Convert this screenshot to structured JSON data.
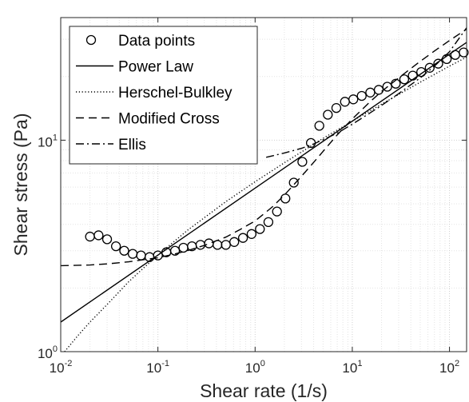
{
  "chart_data": {
    "type": "line",
    "xscale": "log",
    "yscale": "log",
    "xlim": [
      0.01,
      150
    ],
    "ylim": [
      1,
      38
    ],
    "xlabel": "Shear rate (1/s)",
    "ylabel": "Shear stress (Pa)",
    "grid": true,
    "legend_position": "top-left",
    "x_ticks": [
      {
        "value": 0.01,
        "base": "10",
        "exp": "-2"
      },
      {
        "value": 0.1,
        "base": "10",
        "exp": "-1"
      },
      {
        "value": 1,
        "base": "10",
        "exp": "0"
      },
      {
        "value": 10,
        "base": "10",
        "exp": "1"
      },
      {
        "value": 100,
        "base": "10",
        "exp": "2"
      }
    ],
    "y_ticks": [
      {
        "value": 1,
        "base": "10",
        "exp": "0"
      },
      {
        "value": 10,
        "base": "10",
        "exp": "1"
      }
    ],
    "series": [
      {
        "name": "Data points",
        "style": "markers",
        "marker": "open-circle",
        "color": "#000000",
        "x": [
          0.02,
          0.0245,
          0.03,
          0.037,
          0.045,
          0.055,
          0.067,
          0.082,
          0.1,
          0.122,
          0.15,
          0.183,
          0.224,
          0.274,
          0.335,
          0.41,
          0.5,
          0.61,
          0.75,
          0.92,
          1.12,
          1.37,
          1.68,
          2.05,
          2.5,
          3.06,
          3.75,
          4.58,
          5.6,
          6.85,
          8.4,
          10.25,
          12.5,
          15.3,
          18.7,
          22.9,
          28,
          34.2,
          41.9,
          51.2,
          62.6,
          76.6,
          93.7,
          114.6,
          140
        ],
        "y": [
          3.5,
          3.55,
          3.4,
          3.15,
          3.0,
          2.9,
          2.85,
          2.8,
          2.85,
          2.95,
          3.0,
          3.1,
          3.15,
          3.2,
          3.25,
          3.2,
          3.2,
          3.3,
          3.45,
          3.6,
          3.8,
          4.1,
          4.6,
          5.3,
          6.3,
          7.9,
          9.7,
          11.7,
          13.2,
          14.2,
          15.2,
          15.6,
          16.2,
          16.8,
          17.3,
          17.9,
          18.5,
          19.4,
          20.2,
          21.0,
          22.0,
          23.0,
          24.2,
          25.3,
          26.0
        ]
      },
      {
        "name": "Power Law",
        "style": "solid",
        "color": "#000000",
        "x": [
          0.01,
          150
        ],
        "y": [
          1.38,
          29.0
        ]
      },
      {
        "name": "Herschel-Bulkley",
        "style": "dotted",
        "color": "#000000",
        "x": [
          0.01,
          0.015,
          0.02,
          0.03,
          0.05,
          0.07,
          0.1,
          0.2,
          0.5,
          1,
          2,
          5,
          10,
          20,
          50,
          100,
          150
        ],
        "y": [
          0.95,
          1.19,
          1.38,
          1.67,
          2.14,
          2.47,
          2.86,
          3.74,
          5.12,
          6.36,
          7.82,
          10.2,
          12.3,
          14.8,
          18.8,
          22.4,
          24.7
        ]
      },
      {
        "name": "Modified Cross",
        "style": "dashed",
        "color": "#000000",
        "x": [
          0.01,
          0.02,
          0.03,
          0.05,
          0.07,
          0.1,
          0.15,
          0.2,
          0.3,
          0.5,
          0.7,
          1,
          1.5,
          2,
          3,
          4,
          5,
          7,
          10,
          15,
          20,
          30,
          50,
          70,
          100,
          150
        ],
        "y": [
          2.55,
          2.57,
          2.6,
          2.66,
          2.72,
          2.78,
          2.9,
          3.0,
          3.18,
          3.48,
          3.78,
          4.15,
          4.83,
          5.5,
          6.75,
          7.85,
          8.85,
          10.6,
          12.6,
          15.1,
          17.0,
          19.7,
          23.6,
          26.4,
          29.6,
          33.5
        ]
      },
      {
        "name": "Ellis",
        "style": "dashdot",
        "color": "#000000",
        "x": [
          1.3,
          2,
          3,
          4,
          5,
          7,
          10,
          15,
          20,
          30,
          50,
          70,
          100,
          150
        ],
        "y": [
          8.3,
          8.7,
          9.15,
          9.6,
          10.05,
          10.8,
          11.9,
          13.4,
          14.6,
          16.6,
          19.7,
          22.4,
          26.2,
          34.0
        ]
      }
    ]
  }
}
